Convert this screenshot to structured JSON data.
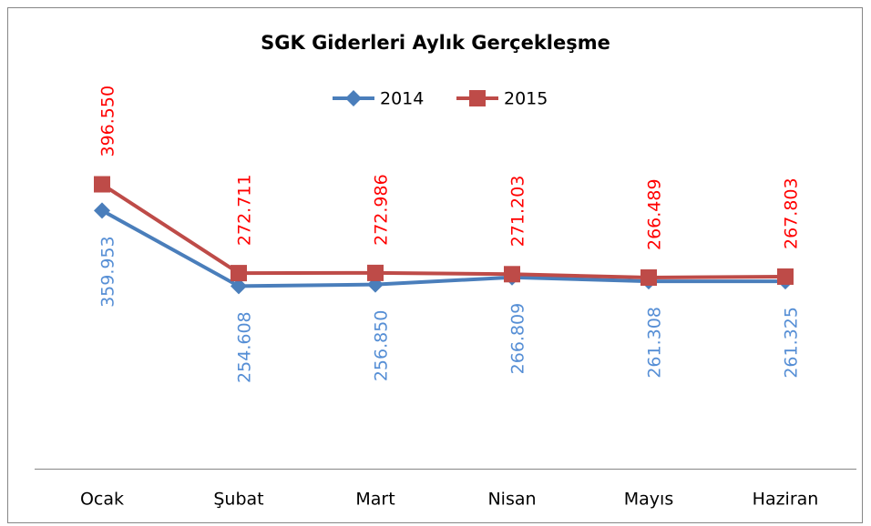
{
  "chart_data": {
    "type": "line",
    "title": "SGK Giderleri Aylık Gerçekleşme",
    "categories": [
      "Ocak",
      "Şubat",
      "Mart",
      "Nisan",
      "Mayıs",
      "Haziran"
    ],
    "series": [
      {
        "name": "2014",
        "color": "#4a7ebb",
        "label_color": "#558ed5",
        "marker": "diamond",
        "values": [
          359953,
          254608,
          256850,
          266809,
          261308,
          261325
        ],
        "value_labels": [
          "359.953",
          "254.608",
          "256.850",
          "266.809",
          "261.308",
          "261.325"
        ]
      },
      {
        "name": "2015",
        "color": "#be4b48",
        "label_color": "#ff0000",
        "marker": "square",
        "values": [
          396550,
          272711,
          272986,
          271203,
          266489,
          267803
        ],
        "value_labels": [
          "396.550",
          "272.711",
          "272.986",
          "271.203",
          "266.489",
          "267.803"
        ]
      }
    ],
    "ylim": [
      0,
      500000
    ],
    "legend": "top"
  }
}
